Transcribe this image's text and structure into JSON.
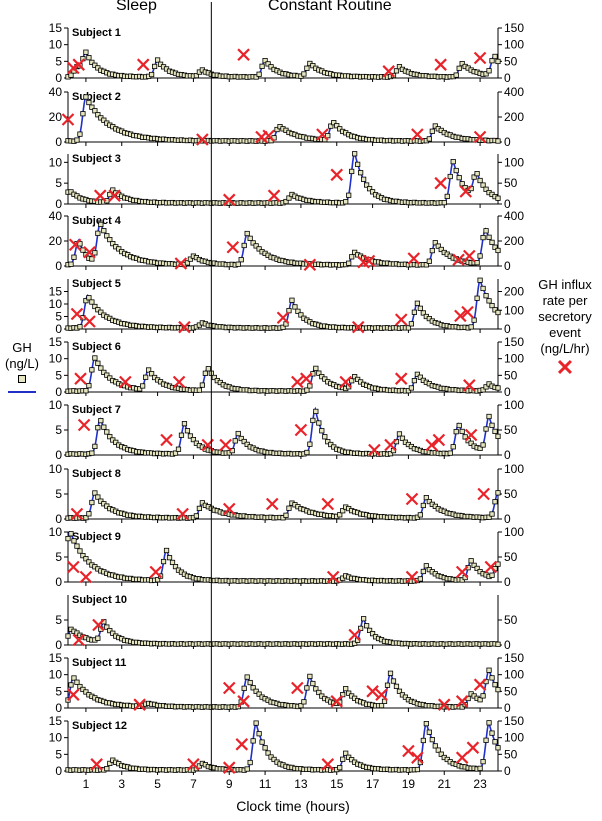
{
  "header": {
    "sleep_label": "Sleep",
    "constant_routine_label": "Constant Routine"
  },
  "left_legend": {
    "line1": "GH",
    "line2": "(ng/L)"
  },
  "right_legend": {
    "line1": "GH influx",
    "line2": "rate per",
    "line3": "secretory",
    "line4": "event",
    "line5": "(ng/L/hr)"
  },
  "colors": {
    "fit_line": "#2130c9",
    "marker": "#e8232a",
    "observed": "#000000",
    "observed_fill": "#e6e6c0"
  },
  "chart_data": {
    "type": "line",
    "xlabel": "Clock time (hours)",
    "xlim": [
      0,
      24
    ],
    "xticks": [
      1,
      3,
      5,
      7,
      9,
      11,
      13,
      15,
      17,
      19,
      21,
      23
    ],
    "sleep_end": 8,
    "panels": [
      {
        "subject": "Subject 1",
        "ylim": [
          0,
          15
        ],
        "left_ticks": [
          0,
          5,
          10,
          15
        ],
        "right_ticks": [
          0,
          50,
          100,
          150
        ],
        "peaks": [
          [
            0.5,
            3,
            0.6
          ],
          [
            1,
            6,
            0.6
          ],
          [
            5,
            5,
            0.6
          ],
          [
            7.5,
            2,
            0.5
          ],
          [
            11,
            5,
            0.6
          ],
          [
            13.5,
            4,
            0.7
          ],
          [
            18.5,
            3,
            0.6
          ],
          [
            22,
            4,
            0.7
          ],
          [
            23.8,
            6,
            0.6
          ]
        ],
        "markers": [
          [
            0.3,
            30
          ],
          [
            0.6,
            40
          ],
          [
            4.2,
            40
          ],
          [
            9.8,
            70
          ],
          [
            17.9,
            20
          ],
          [
            20.8,
            40
          ],
          [
            23,
            60
          ]
        ]
      },
      {
        "subject": "Subject 2",
        "ylim": [
          0,
          40
        ],
        "left_ticks": [
          0,
          20,
          40
        ],
        "right_ticks": [
          0,
          200,
          400
        ],
        "peaks": [
          [
            1,
            35,
            1.2
          ],
          [
            11.8,
            12,
            0.9
          ],
          [
            14.8,
            15,
            0.7
          ],
          [
            20.5,
            12,
            0.8
          ]
        ],
        "markers": [
          [
            0,
            180
          ],
          [
            7.5,
            20
          ],
          [
            10.8,
            40
          ],
          [
            11.2,
            50
          ],
          [
            14.2,
            60
          ],
          [
            19.5,
            60
          ],
          [
            23,
            40
          ]
        ]
      },
      {
        "subject": "Subject 3",
        "ylim": [
          0,
          12
        ],
        "left_ticks": [
          0,
          5,
          10
        ],
        "right_ticks": [
          0,
          50,
          100
        ],
        "peaks": [
          [
            0.1,
            3,
            0.6
          ],
          [
            2.5,
            3,
            0.7
          ],
          [
            12.5,
            2,
            0.7
          ],
          [
            16,
            12,
            0.6
          ],
          [
            21.5,
            10,
            0.6
          ],
          [
            22.8,
            6,
            0.6
          ]
        ],
        "markers": [
          [
            1.8,
            20
          ],
          [
            2.6,
            20
          ],
          [
            9,
            10
          ],
          [
            11.5,
            20
          ],
          [
            15,
            70
          ],
          [
            20.8,
            50
          ],
          [
            22.2,
            30
          ]
        ]
      },
      {
        "subject": "Subject 4",
        "ylim": [
          0,
          40
        ],
        "left_ticks": [
          0,
          20,
          40
        ],
        "right_ticks": [
          0,
          200,
          400
        ],
        "peaks": [
          [
            0.6,
            20,
            0.4
          ],
          [
            1.8,
            32,
            1.0
          ],
          [
            7,
            7,
            0.6
          ],
          [
            10,
            25,
            0.9
          ],
          [
            16,
            10,
            0.8
          ],
          [
            20.5,
            18,
            0.8
          ],
          [
            23.3,
            28,
            0.7
          ]
        ],
        "markers": [
          [
            0.4,
            170
          ],
          [
            1.2,
            110
          ],
          [
            6.3,
            20
          ],
          [
            9.2,
            150
          ],
          [
            13.5,
            10
          ],
          [
            16.5,
            30
          ],
          [
            16.8,
            40
          ],
          [
            19.3,
            60
          ],
          [
            21.8,
            50
          ],
          [
            22.4,
            80
          ]
        ]
      },
      {
        "subject": "Subject 5",
        "ylim": [
          0,
          20
        ],
        "left_ticks": [
          0,
          5,
          10,
          15
        ],
        "right_ticks": [
          0,
          100,
          200
        ],
        "peaks": [
          [
            1.1,
            13,
            0.9
          ],
          [
            7.5,
            2,
            0.6
          ],
          [
            12.5,
            11,
            0.6
          ],
          [
            19.5,
            10,
            0.6
          ],
          [
            23,
            19,
            0.8
          ]
        ],
        "markers": [
          [
            0.5,
            80
          ],
          [
            1.2,
            40
          ],
          [
            6.5,
            10
          ],
          [
            12,
            60
          ],
          [
            16.2,
            10
          ],
          [
            18.6,
            50
          ],
          [
            21.9,
            70
          ],
          [
            22.3,
            90
          ]
        ]
      },
      {
        "subject": "Subject 6",
        "ylim": [
          0,
          15
        ],
        "left_ticks": [
          0,
          5,
          10,
          15
        ],
        "right_ticks": [
          0,
          50,
          100,
          150
        ],
        "peaks": [
          [
            1.5,
            10,
            0.8
          ],
          [
            4.5,
            6,
            0.7
          ],
          [
            7.8,
            7,
            0.6
          ],
          [
            13.8,
            7,
            0.7
          ],
          [
            16,
            4,
            0.6
          ],
          [
            19.5,
            5,
            0.7
          ],
          [
            23.5,
            2,
            0.5
          ]
        ],
        "markers": [
          [
            0.7,
            40
          ],
          [
            3.2,
            30
          ],
          [
            6.2,
            30
          ],
          [
            12.8,
            30
          ],
          [
            13.3,
            40
          ],
          [
            15.5,
            30
          ],
          [
            18.6,
            40
          ],
          [
            22.4,
            20
          ]
        ]
      },
      {
        "subject": "Subject 7",
        "ylim": [
          0,
          10
        ],
        "left_ticks": [
          0,
          5,
          10
        ],
        "right_ticks": [
          0,
          50,
          100
        ],
        "peaks": [
          [
            1.8,
            7,
            0.7
          ],
          [
            6.5,
            6,
            0.6
          ],
          [
            9.5,
            4,
            0.6
          ],
          [
            13.8,
            9,
            0.5
          ],
          [
            18.5,
            4,
            0.6
          ],
          [
            21.8,
            6,
            0.6
          ],
          [
            23.5,
            7,
            0.6
          ]
        ],
        "markers": [
          [
            0.9,
            60
          ],
          [
            5.5,
            30
          ],
          [
            7.8,
            20
          ],
          [
            8.8,
            20
          ],
          [
            13,
            50
          ],
          [
            17.1,
            10
          ],
          [
            18,
            20
          ],
          [
            20.3,
            20
          ],
          [
            20.7,
            30
          ],
          [
            22.5,
            40
          ]
        ]
      },
      {
        "subject": "Subject 8",
        "ylim": [
          0,
          10
        ],
        "left_ticks": [
          0,
          5,
          10
        ],
        "right_ticks": [
          0,
          50,
          100
        ],
        "peaks": [
          [
            1.5,
            5,
            0.8
          ],
          [
            7.5,
            3,
            1.0
          ],
          [
            12.5,
            3,
            1.0
          ],
          [
            15.5,
            2,
            0.8
          ],
          [
            20,
            4,
            0.8
          ],
          [
            24,
            5,
            0.6
          ]
        ],
        "markers": [
          [
            0.5,
            10
          ],
          [
            6.4,
            10
          ],
          [
            9,
            20
          ],
          [
            11.4,
            30
          ],
          [
            14.5,
            30
          ],
          [
            19.2,
            40
          ],
          [
            23.2,
            50
          ]
        ]
      },
      {
        "subject": "Subject 9",
        "ylim": [
          0,
          10
        ],
        "left_ticks": [
          0,
          5,
          10
        ],
        "right_ticks": [
          0,
          50,
          100
        ],
        "peaks": [
          [
            0.1,
            10,
            1.0
          ],
          [
            5.5,
            6,
            0.6
          ],
          [
            15.5,
            1,
            0.6
          ],
          [
            20,
            3,
            0.6
          ],
          [
            22.5,
            4,
            0.6
          ],
          [
            24,
            3,
            0.5
          ]
        ],
        "markers": [
          [
            0.3,
            30
          ],
          [
            1,
            10
          ],
          [
            4.9,
            20
          ],
          [
            14.8,
            10
          ],
          [
            19.2,
            10
          ],
          [
            22,
            20
          ],
          [
            23.6,
            30
          ]
        ]
      },
      {
        "subject": "Subject 10",
        "ylim": [
          0,
          10
        ],
        "left_ticks": [
          0,
          5
        ],
        "right_ticks": [
          0,
          50
        ],
        "peaks": [
          [
            0.2,
            3,
            0.8
          ],
          [
            2,
            4,
            0.6
          ],
          [
            16.5,
            5,
            0.5
          ]
        ],
        "markers": [
          [
            0.6,
            10
          ],
          [
            1.7,
            40
          ],
          [
            16,
            20
          ]
        ]
      },
      {
        "subject": "Subject 11",
        "ylim": [
          0,
          15
        ],
        "left_ticks": [
          0,
          5,
          10,
          15
        ],
        "right_ticks": [
          0,
          50,
          100,
          150
        ],
        "peaks": [
          [
            0.3,
            9,
            0.9
          ],
          [
            4.5,
            1,
            0.6
          ],
          [
            10,
            9,
            0.7
          ],
          [
            13.5,
            9,
            0.6
          ],
          [
            15.5,
            5,
            0.6
          ],
          [
            18,
            10,
            0.6
          ],
          [
            22.5,
            4,
            0.7
          ],
          [
            23.5,
            10,
            0.6
          ]
        ],
        "markers": [
          [
            0.3,
            40
          ],
          [
            4,
            10
          ],
          [
            9,
            60
          ],
          [
            9.8,
            20
          ],
          [
            12.8,
            60
          ],
          [
            15,
            20
          ],
          [
            17,
            50
          ],
          [
            17.5,
            40
          ],
          [
            21,
            10
          ],
          [
            22,
            20
          ],
          [
            23,
            70
          ]
        ]
      },
      {
        "subject": "Subject 12",
        "ylim": [
          0,
          15
        ],
        "left_ticks": [
          0,
          5,
          10,
          15
        ],
        "right_ticks": [
          0,
          50,
          100,
          150
        ],
        "peaks": [
          [
            2.5,
            3,
            0.6
          ],
          [
            7.5,
            2,
            0.5
          ],
          [
            10.5,
            14,
            0.6
          ],
          [
            15.5,
            5,
            0.6
          ],
          [
            20,
            14,
            0.7
          ],
          [
            23.5,
            14,
            0.6
          ]
        ],
        "markers": [
          [
            1.6,
            20
          ],
          [
            7,
            20
          ],
          [
            9,
            10
          ],
          [
            9.7,
            80
          ],
          [
            14.5,
            20
          ],
          [
            19,
            60
          ],
          [
            19.5,
            40
          ],
          [
            22,
            40
          ],
          [
            22.6,
            70
          ]
        ]
      }
    ]
  }
}
